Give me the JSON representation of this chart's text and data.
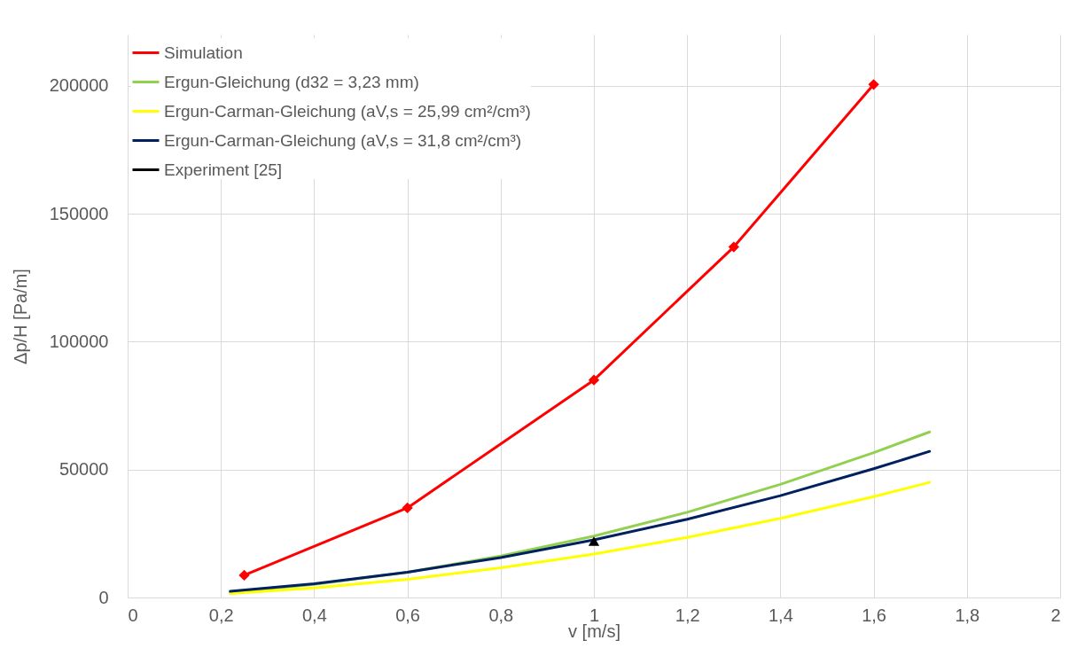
{
  "chart_data": {
    "type": "line",
    "xlabel": "v [m/s]",
    "ylabel": "Δp/H [Pa/m]",
    "xlim": [
      0,
      2
    ],
    "xticks": [
      0,
      {
        "value": 0.2,
        "label": "0,2"
      },
      {
        "value": 0.4,
        "label": "0,4"
      },
      {
        "value": 0.6,
        "label": "0,6"
      },
      {
        "value": 0.8,
        "label": "0,8"
      },
      1,
      {
        "value": 1.2,
        "label": "1,2"
      },
      {
        "value": 1.4,
        "label": "1,4"
      },
      {
        "value": 1.6,
        "label": "1,6"
      },
      {
        "value": 1.8,
        "label": "1,8"
      },
      2
    ],
    "ylim": [
      0,
      220000
    ],
    "yticks": [
      0,
      50000,
      100000,
      150000,
      200000
    ],
    "grid": true,
    "legend": "top left",
    "line_style": "solid",
    "series": [
      {
        "name": "Simulation",
        "color": "#ff0000",
        "marker": "diamond",
        "x": [
          0.25,
          0.6,
          1,
          1.3,
          1.6
        ],
        "values": [
          8700,
          35000,
          85000,
          137000,
          200500
        ]
      },
      {
        "name": "Ergun-Gleichung (d32 = 3,23 mm)",
        "color": "#92d050",
        "marker": "none",
        "x": [
          0.22,
          0.4,
          0.6,
          0.8,
          1,
          1.2,
          1.4,
          1.6,
          1.72
        ],
        "values": [
          2000,
          5100,
          9900,
          16200,
          24000,
          33300,
          44200,
          56600,
          64700
        ]
      },
      {
        "name": "Ergun-Carman-Gleichung (aV,s = 25,99 cm²/cm³)",
        "color": "#ffff00",
        "marker": "none",
        "x": [
          0.22,
          0.4,
          0.6,
          0.8,
          1,
          1.2,
          1.4,
          1.6,
          1.72
        ],
        "values": [
          1600,
          3700,
          7100,
          11600,
          17000,
          23500,
          30900,
          39400,
          45000
        ]
      },
      {
        "name": "Ergun-Carman-Gleichung (aV,s = 31,8 cm²/cm³)",
        "color": "#002060",
        "marker": "none",
        "x": [
          0.22,
          0.4,
          0.6,
          0.8,
          1,
          1.2,
          1.4,
          1.6,
          1.72
        ],
        "values": [
          2400,
          5400,
          9900,
          15600,
          22500,
          30600,
          39800,
          50300,
          57100
        ]
      },
      {
        "name": "Experiment [25]",
        "color": "#000000",
        "marker": "triangle",
        "x": [
          1
        ],
        "values": [
          22000
        ]
      }
    ]
  }
}
